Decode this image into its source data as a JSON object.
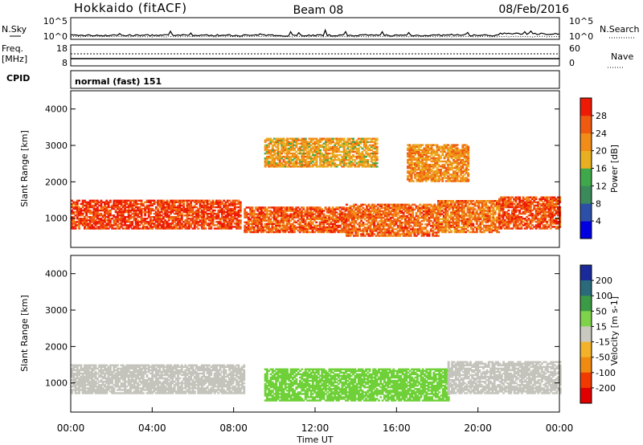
{
  "header": {
    "site": "Hokkaido (fitACF)",
    "beam": "Beam 08",
    "date": "08/Feb/2016"
  },
  "top_panels": {
    "nsky_label": "N.Sky",
    "nsearch_label": "N.Search",
    "noise_ticks": [
      "10^5",
      "10^0"
    ],
    "freq_label_1": "Freq.",
    "freq_label_2": "[MHz]",
    "freq_ticks": [
      "18",
      "8"
    ],
    "nave_label": "Nave",
    "nave_ticks": [
      "60",
      "0"
    ],
    "cpid_label": "CPID",
    "cpid_text": "normal (fast) 151"
  },
  "colors": {
    "power_scale": [
      "#0000e0",
      "#2c4fa8",
      "#3a8a5a",
      "#3fa84a",
      "#e8b020",
      "#f28c18",
      "#ef5a10",
      "#ee1a06"
    ],
    "velocity_scale": [
      "#e00000",
      "#f03a00",
      "#f08a10",
      "#f2b22a",
      "#c9c9c0",
      "#7fd34a",
      "#3a9a45",
      "#2a6a7a",
      "#1a2a9a"
    ],
    "velocity_range_gray": "#c4c4bc",
    "velocity_green": "#6fd038"
  },
  "chart_data": [
    {
      "type": "heatmap",
      "panel": "power",
      "xlabel": "",
      "ylabel": "Slant Range [km]",
      "ylim": [
        200,
        4500
      ],
      "y_ticks": [
        1000,
        2000,
        3000,
        4000
      ],
      "colorbar_label": "Power [dB]",
      "colorbar_ticks": [
        4,
        8,
        12,
        16,
        20,
        24,
        28
      ],
      "clim": [
        0,
        32
      ],
      "echo_regions": [
        {
          "t": [
            0.0,
            8.3
          ],
          "r": [
            700,
            1500
          ],
          "power": 28
        },
        {
          "t": [
            8.5,
            13.5
          ],
          "r": [
            600,
            1300
          ],
          "power": 26
        },
        {
          "t": [
            13.5,
            18.0
          ],
          "r": [
            500,
            1400
          ],
          "power": 25
        },
        {
          "t": [
            18.0,
            21.0
          ],
          "r": [
            600,
            1500
          ],
          "power": 24
        },
        {
          "t": [
            21.0,
            24.0
          ],
          "r": [
            700,
            1600
          ],
          "power": 27
        },
        {
          "t": [
            9.5,
            15.0
          ],
          "r": [
            2400,
            3200
          ],
          "power": 20
        },
        {
          "t": [
            16.5,
            19.5
          ],
          "r": [
            2000,
            3000
          ],
          "power": 22
        }
      ]
    },
    {
      "type": "heatmap",
      "panel": "velocity",
      "xlabel": "Time UT",
      "ylabel": "Slant Range [km]",
      "ylim": [
        200,
        4500
      ],
      "y_ticks": [
        1000,
        2000,
        3000,
        4000
      ],
      "x_ticks": [
        "00:00",
        "04:00",
        "08:00",
        "12:00",
        "16:00",
        "20:00",
        "00:00"
      ],
      "xlim_hours": [
        0,
        24
      ],
      "colorbar_label": "Velocity [m s-1]",
      "colorbar_ticks": [
        200,
        100,
        50,
        15,
        -15,
        -50,
        -100,
        -200
      ],
      "clim": [
        -300,
        300
      ],
      "echo_regions": [
        {
          "t": [
            0.0,
            8.5
          ],
          "r": [
            700,
            1500
          ],
          "velocity": 0
        },
        {
          "t": [
            9.5,
            18.5
          ],
          "r": [
            500,
            1400
          ],
          "velocity": 40
        },
        {
          "t": [
            18.5,
            24.0
          ],
          "r": [
            700,
            1600
          ],
          "velocity": 0
        }
      ]
    }
  ]
}
